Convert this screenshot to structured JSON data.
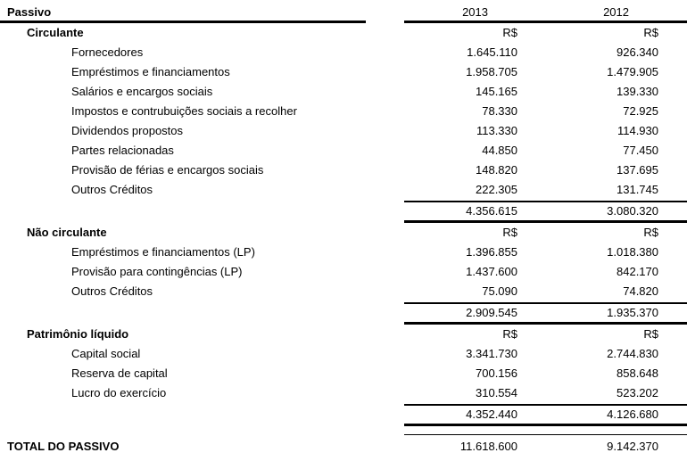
{
  "header": {
    "title": "Passivo",
    "year_1": "2013",
    "year_2": "2012"
  },
  "sections": [
    {
      "title": "Circulante",
      "currency_1": "R$",
      "currency_2": "R$",
      "rows": [
        {
          "label": "Fornecedores",
          "v1": "1.645.110",
          "v2": "926.340"
        },
        {
          "label": "Empréstimos e financiamentos",
          "v1": "1.958.705",
          "v2": "1.479.905"
        },
        {
          "label": "Salários e encargos sociais",
          "v1": "145.165",
          "v2": "139.330"
        },
        {
          "label": "Impostos e contrubuições sociais a recolher",
          "v1": "78.330",
          "v2": "72.925"
        },
        {
          "label": "Dividendos propostos",
          "v1": "113.330",
          "v2": "114.930"
        },
        {
          "label": "Partes relacionadas",
          "v1": "44.850",
          "v2": "77.450"
        },
        {
          "label": "Provisão de férias e encargos sociais",
          "v1": "148.820",
          "v2": "137.695"
        },
        {
          "label": "Outros Créditos",
          "v1": "222.305",
          "v2": "131.745"
        }
      ],
      "subtotal": {
        "v1": "4.356.615",
        "v2": "3.080.320"
      }
    },
    {
      "title": "Não circulante",
      "currency_1": "R$",
      "currency_2": "R$",
      "rows": [
        {
          "label": "Empréstimos e financiamentos (LP)",
          "v1": "1.396.855",
          "v2": "1.018.380"
        },
        {
          "label": "Provisão para contingências (LP)",
          "v1": "1.437.600",
          "v2": "842.170"
        },
        {
          "label": "Outros Créditos",
          "v1": "75.090",
          "v2": "74.820"
        }
      ],
      "subtotal": {
        "v1": "2.909.545",
        "v2": "1.935.370"
      }
    },
    {
      "title": "Patrimônio líquido",
      "currency_1": "R$",
      "currency_2": "R$",
      "rows": [
        {
          "label": "Capital social",
          "v1": "3.341.730",
          "v2": "2.744.830"
        },
        {
          "label": "Reserva de capital",
          "v1": "700.156",
          "v2": "858.648"
        },
        {
          "label": "Lucro do exercício",
          "v1": "310.554",
          "v2": "523.202"
        }
      ],
      "subtotal": {
        "v1": "4.352.440",
        "v2": "4.126.680"
      }
    }
  ],
  "total": {
    "label": "TOTAL DO PASSIVO",
    "v1": "11.618.600",
    "v2": "9.142.370"
  },
  "colors": {
    "text": "#000000",
    "rule": "#000000",
    "background": "#ffffff"
  }
}
